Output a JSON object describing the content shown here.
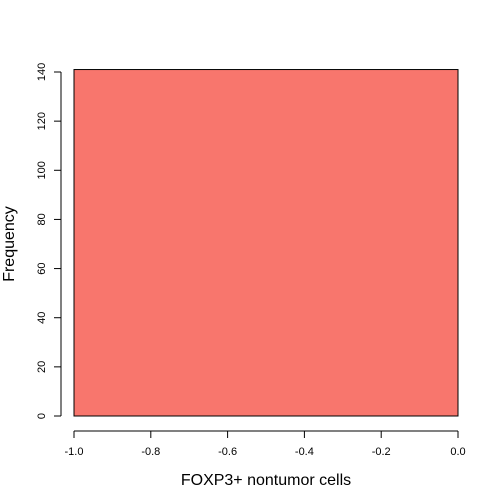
{
  "chart_data": {
    "type": "bar",
    "title": "",
    "xlabel": "FOXP3+ nontumor cells",
    "ylabel": "Frequency",
    "xlim": [
      -1.0,
      0.0
    ],
    "ylim": [
      0,
      140
    ],
    "x_ticks": [
      -1.0,
      -0.8,
      -0.6,
      -0.4,
      -0.2,
      0.0
    ],
    "x_tick_labels": [
      "-1.0",
      "-0.8",
      "-0.6",
      "-0.4",
      "-0.2",
      "0.0"
    ],
    "y_ticks": [
      0,
      20,
      40,
      60,
      80,
      100,
      120,
      140
    ],
    "y_tick_labels": [
      "0",
      "20",
      "40",
      "60",
      "80",
      "100",
      "120",
      "140"
    ],
    "bins": [
      {
        "x_start": -1.0,
        "x_end": 0.0,
        "count": 141
      }
    ],
    "bar_color": "#F8766D",
    "grid": false,
    "legend": "none"
  }
}
